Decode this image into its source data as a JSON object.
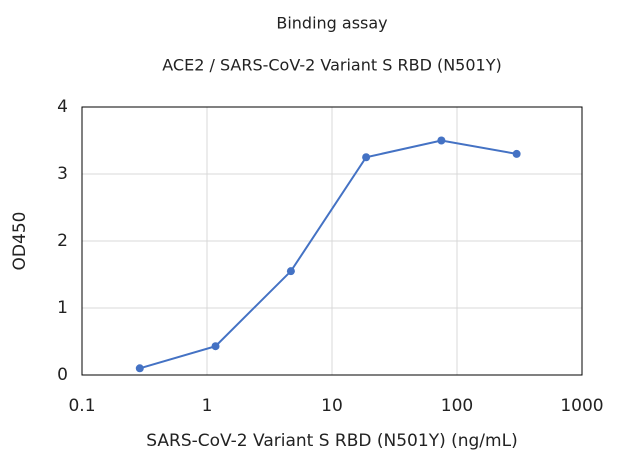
{
  "chart_data": {
    "type": "line",
    "title": "Binding assay",
    "subtitle": "ACE2 / SARS-CoV-2 Variant S RBD (N501Y)",
    "x_label": "SARS-CoV-2 Variant S RBD (N501Y) (ng/mL)",
    "y_label": "OD450",
    "x": [
      0.29,
      1.17,
      4.69,
      18.75,
      75,
      300
    ],
    "values": [
      0.1,
      0.43,
      1.55,
      3.25,
      3.5,
      3.3
    ],
    "color": "#4472c4",
    "xscale": "log",
    "xlim": [
      0.1,
      1000
    ],
    "xticks": [
      0.1,
      1,
      10,
      100,
      1000
    ],
    "ylim": [
      0,
      4
    ],
    "yticks": [
      0,
      1,
      2,
      3,
      4
    ],
    "grid": true
  }
}
